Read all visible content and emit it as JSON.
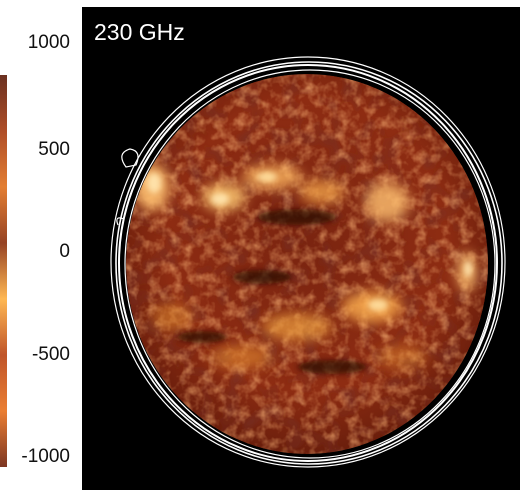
{
  "image": {
    "frequency_label": "230 GHz",
    "y_axis_ticks": [
      "1000",
      "500",
      "0",
      "-500",
      "-1000"
    ],
    "colors": {
      "background": "#000000",
      "disk_base": "#8a2a10",
      "bright_region": "#ffd07a",
      "limb_contour": "#ffffff"
    }
  }
}
